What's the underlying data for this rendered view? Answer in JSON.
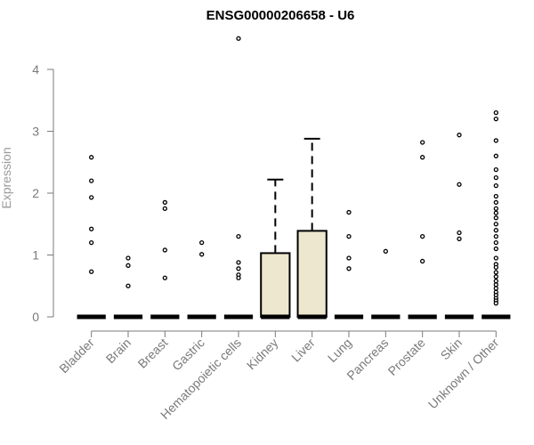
{
  "chart_data": {
    "type": "boxplot",
    "title": "ENSG00000206658 - U6",
    "xlabel": "",
    "ylabel": "Expression",
    "ylim": [
      0,
      4.5
    ],
    "yticks": [
      0,
      1,
      2,
      3,
      4
    ],
    "grid": false,
    "legend": "none",
    "categories": [
      "Bladder",
      "Brain",
      "Breast",
      "Gastric",
      "Hematopoietic cells",
      "Kidney",
      "Liver",
      "Lung",
      "Pancreas",
      "Prostate",
      "Skin",
      "Unknown / Other"
    ],
    "boxes": [
      {
        "category": "Bladder",
        "q1": 0,
        "median": 0,
        "q3": 0,
        "whisker_high": 0
      },
      {
        "category": "Brain",
        "q1": 0,
        "median": 0,
        "q3": 0,
        "whisker_high": 0
      },
      {
        "category": "Breast",
        "q1": 0,
        "median": 0,
        "q3": 0,
        "whisker_high": 0
      },
      {
        "category": "Gastric",
        "q1": 0,
        "median": 0,
        "q3": 0,
        "whisker_high": 0
      },
      {
        "category": "Hematopoietic cells",
        "q1": 0,
        "median": 0,
        "q3": 0,
        "whisker_high": 0
      },
      {
        "category": "Kidney",
        "q1": 0,
        "median": 0,
        "q3": 1.03,
        "whisker_high": 2.22
      },
      {
        "category": "Liver",
        "q1": 0,
        "median": 0,
        "q3": 1.39,
        "whisker_high": 2.88
      },
      {
        "category": "Lung",
        "q1": 0,
        "median": 0,
        "q3": 0,
        "whisker_high": 0
      },
      {
        "category": "Pancreas",
        "q1": 0,
        "median": 0,
        "q3": 0,
        "whisker_high": 0
      },
      {
        "category": "Prostate",
        "q1": 0,
        "median": 0,
        "q3": 0,
        "whisker_high": 0
      },
      {
        "category": "Skin",
        "q1": 0,
        "median": 0,
        "q3": 0,
        "whisker_high": 0
      },
      {
        "category": "Unknown / Other",
        "q1": 0,
        "median": 0,
        "q3": 0,
        "whisker_high": 0
      }
    ],
    "outliers": [
      {
        "category": "Bladder",
        "values": [
          2.58,
          2.2,
          1.93,
          1.42,
          1.2,
          0.73
        ]
      },
      {
        "category": "Brain",
        "values": [
          0.95,
          0.83,
          0.5
        ]
      },
      {
        "category": "Breast",
        "values": [
          1.85,
          1.75,
          1.08,
          0.63
        ]
      },
      {
        "category": "Gastric",
        "values": [
          1.2,
          1.01
        ]
      },
      {
        "category": "Hematopoietic cells",
        "values": [
          4.5,
          1.3,
          0.88,
          0.78,
          0.68,
          0.63
        ]
      },
      {
        "category": "Lung",
        "values": [
          1.69,
          1.3,
          0.95,
          0.78
        ]
      },
      {
        "category": "Pancreas",
        "values": [
          1.06
        ]
      },
      {
        "category": "Prostate",
        "values": [
          2.82,
          2.58,
          1.3,
          0.9
        ]
      },
      {
        "category": "Skin",
        "values": [
          2.94,
          2.14,
          1.36,
          1.26
        ]
      },
      {
        "category": "Unknown / Other",
        "values": [
          3.3,
          3.2,
          2.85,
          2.6,
          2.38,
          2.25,
          2.12,
          1.95,
          1.85,
          1.75,
          1.68,
          1.6,
          1.5,
          1.4,
          1.3,
          1.2,
          1.1,
          0.95,
          0.85,
          0.8,
          0.72,
          0.65,
          0.58,
          0.52,
          0.46,
          0.4,
          0.35,
          0.3,
          0.26,
          0.22
        ]
      }
    ],
    "colors": {
      "box_fill": "#ede7cf",
      "box_stroke": "#000000",
      "axis": "#7a7a7a",
      "tick_label": "#7a7a7a",
      "ylabel": "#9a9a9a",
      "title": "#000000"
    }
  }
}
